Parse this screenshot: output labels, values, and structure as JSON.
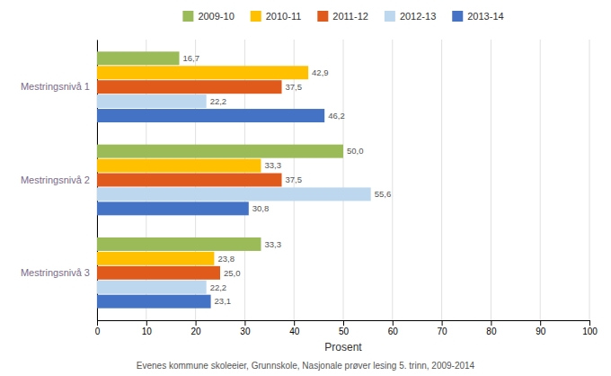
{
  "chart_data": {
    "type": "bar",
    "orientation": "horizontal",
    "categories": [
      "Mestringsnivå 1",
      "Mestringsnivå 2",
      "Mestringsnivå 3"
    ],
    "series": [
      {
        "name": "2009-10",
        "color": "#9BBB59",
        "values": [
          16.7,
          50.0,
          33.3
        ],
        "value_labels": [
          "16,7",
          "50,0",
          "33,3"
        ]
      },
      {
        "name": "2010-11",
        "color": "#FFC000",
        "values": [
          42.9,
          33.3,
          23.8
        ],
        "value_labels": [
          "42,9",
          "33,3",
          "23,8"
        ]
      },
      {
        "name": "2011-12",
        "color": "#E05A1B",
        "values": [
          37.5,
          37.5,
          25.0
        ],
        "value_labels": [
          "37,5",
          "37,5",
          "25,0"
        ]
      },
      {
        "name": "2012-13",
        "color": "#BDD7EE",
        "values": [
          22.2,
          55.6,
          22.2
        ],
        "value_labels": [
          "22,2",
          "55,6",
          "22,2"
        ]
      },
      {
        "name": "2013-14",
        "color": "#4472C4",
        "values": [
          46.2,
          30.8,
          23.1
        ],
        "value_labels": [
          "46,2",
          "30,8",
          "23,1"
        ]
      }
    ],
    "xlabel": "Prosent",
    "xlim": [
      0,
      100
    ],
    "xticks": [
      0,
      10,
      20,
      30,
      40,
      50,
      60,
      70,
      80,
      90,
      100
    ],
    "grid": true,
    "legend": "top",
    "data_labels": true,
    "annotations": [
      "Evenes kommune skoleeier, Grunnskole, Nasjonale prøver lesing 5. trinn, 2009-2014"
    ]
  }
}
